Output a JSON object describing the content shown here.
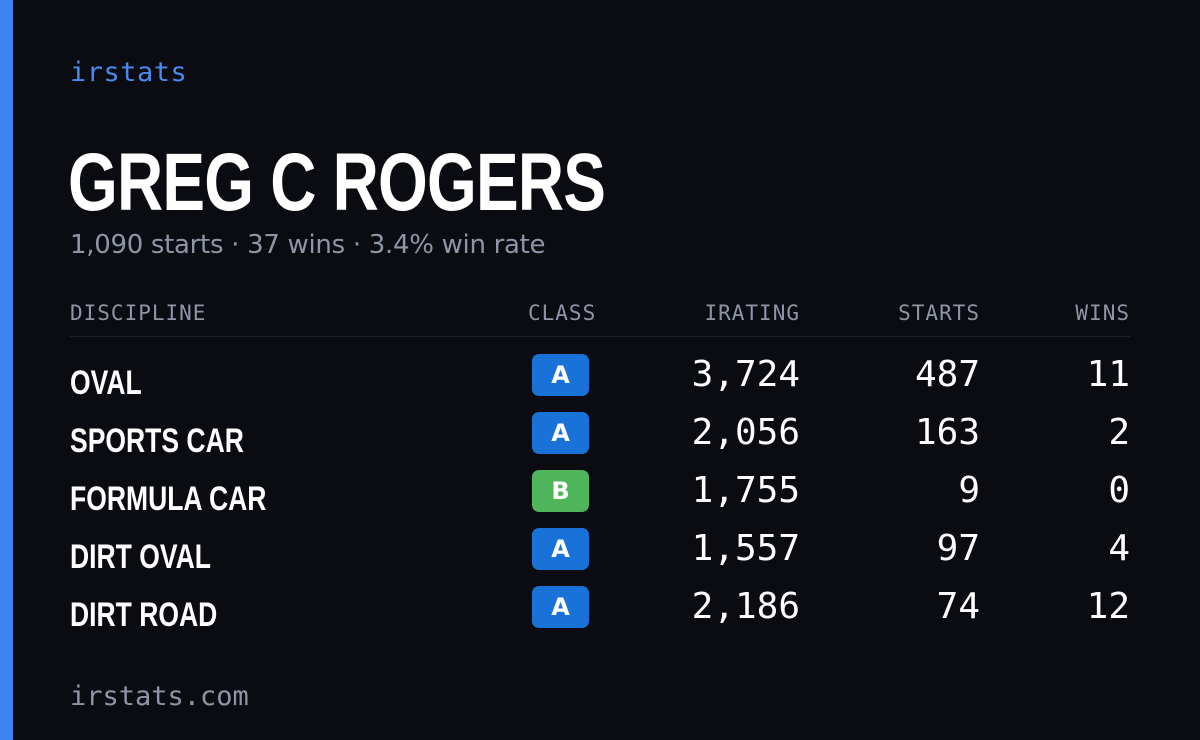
{
  "brand": "irstats",
  "driver": {
    "name": "GREG C ROGERS",
    "summary": "1,090 starts · 37 wins · 3.4% win rate"
  },
  "table": {
    "headers": {
      "discipline": "DISCIPLINE",
      "class": "CLASS",
      "irating": "IRATING",
      "starts": "STARTS",
      "wins": "WINS"
    },
    "rows": [
      {
        "discipline": "OVAL",
        "class": "A",
        "class_color": "#1872d8",
        "irating": "3,724",
        "starts": "487",
        "wins": "11"
      },
      {
        "discipline": "SPORTS CAR",
        "class": "A",
        "class_color": "#1872d8",
        "irating": "2,056",
        "starts": "163",
        "wins": "2"
      },
      {
        "discipline": "FORMULA CAR",
        "class": "B",
        "class_color": "#4fb55a",
        "irating": "1,755",
        "starts": "9",
        "wins": "0"
      },
      {
        "discipline": "DIRT OVAL",
        "class": "A",
        "class_color": "#1872d8",
        "irating": "1,557",
        "starts": "97",
        "wins": "4"
      },
      {
        "discipline": "DIRT ROAD",
        "class": "A",
        "class_color": "#1872d8",
        "irating": "2,186",
        "starts": "74",
        "wins": "12"
      }
    ]
  },
  "footer": "irstats.com",
  "colors": {
    "accent": "#3f83f3",
    "background": "#0a0c12",
    "muted_text": "#8e96a6",
    "class_a": "#1872d8",
    "class_b": "#4fb55a"
  }
}
